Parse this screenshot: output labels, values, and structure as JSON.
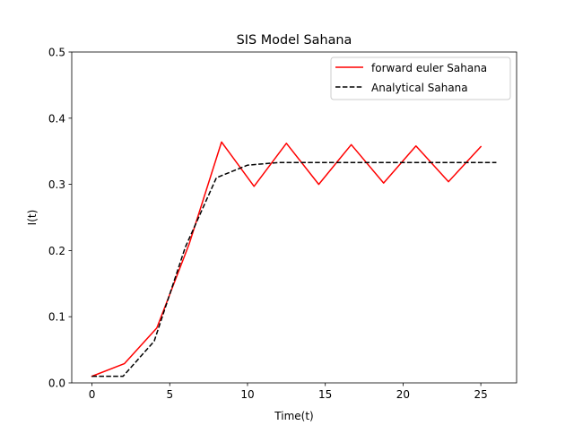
{
  "chart_data": {
    "type": "line",
    "title": "SIS Model Sahana",
    "xlabel": "Time(t)",
    "ylabel": "I(t)",
    "xlim": [
      -1.3,
      27.3
    ],
    "ylim": [
      0.0,
      0.5
    ],
    "xticks": [
      0,
      5,
      10,
      15,
      20,
      25
    ],
    "yticks": [
      0.0,
      0.1,
      0.2,
      0.3,
      0.4,
      0.5
    ],
    "xtick_labels": [
      "0",
      "5",
      "10",
      "15",
      "20",
      "25"
    ],
    "ytick_labels": [
      "0.0",
      "0.1",
      "0.2",
      "0.3",
      "0.4",
      "0.5"
    ],
    "grid": false,
    "legend_position": "top-right",
    "series": [
      {
        "name": "forward euler Sahana",
        "color": "#ff0000",
        "style": "solid",
        "x": [
          0,
          2.08,
          4.17,
          6.25,
          8.33,
          10.42,
          12.5,
          14.58,
          16.67,
          18.75,
          20.83,
          22.92,
          25.0
        ],
        "y": [
          0.01,
          0.029,
          0.083,
          0.21,
          0.364,
          0.297,
          0.362,
          0.3,
          0.36,
          0.302,
          0.358,
          0.304,
          0.357
        ]
      },
      {
        "name": "Analytical Sahana",
        "color": "#000000",
        "style": "dashed",
        "x": [
          0,
          2.0,
          4.0,
          6.0,
          8.0,
          10.0,
          12.0,
          14.0,
          16.0,
          18.0,
          20.0,
          22.0,
          24.0,
          26.0
        ],
        "y": [
          0.01,
          0.01,
          0.063,
          0.205,
          0.31,
          0.329,
          0.333,
          0.333,
          0.333,
          0.333,
          0.333,
          0.333,
          0.333,
          0.333
        ]
      }
    ]
  }
}
